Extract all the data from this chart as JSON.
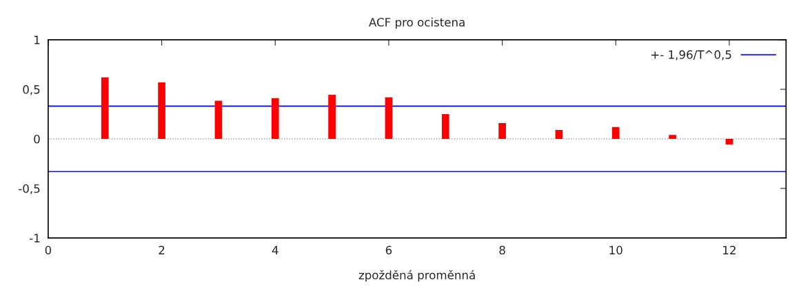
{
  "chart_data": {
    "type": "bar",
    "title": "ACF pro ocistena",
    "xlabel": "zpožděná proměnná",
    "x": [
      1,
      2,
      3,
      4,
      5,
      6,
      7,
      8,
      9,
      10,
      11,
      12
    ],
    "series": [
      {
        "color": "#ff0000",
        "values": [
          0.62,
          0.57,
          0.385,
          0.41,
          0.445,
          0.42,
          0.25,
          0.16,
          0.09,
          0.12,
          0.04,
          -0.057
        ]
      }
    ],
    "xlim": [
      0,
      13
    ],
    "xticks": [
      0,
      2,
      4,
      6,
      8,
      10,
      12
    ],
    "ylim": [
      -1,
      1
    ],
    "yticks": [
      {
        "value": -1,
        "label": "-1"
      },
      {
        "value": -0.5,
        "label": "-0,5"
      },
      {
        "value": 0,
        "label": "0"
      },
      {
        "value": 0.5,
        "label": "0,5"
      },
      {
        "value": 1,
        "label": "1"
      }
    ],
    "ref_lines": [
      {
        "axis": "y",
        "value": 0.33,
        "label": "+- 1,96/T^0,5",
        "color": "#0000ff",
        "line_style": "solid"
      },
      {
        "axis": "y",
        "value": -0.33,
        "label": null,
        "color": "#0000ff",
        "line_style": "solid"
      },
      {
        "axis": "y",
        "value": 0,
        "label": null,
        "color": "#a0a0a0",
        "line_style": "dotted"
      }
    ],
    "grid": false,
    "legend": "top right"
  }
}
